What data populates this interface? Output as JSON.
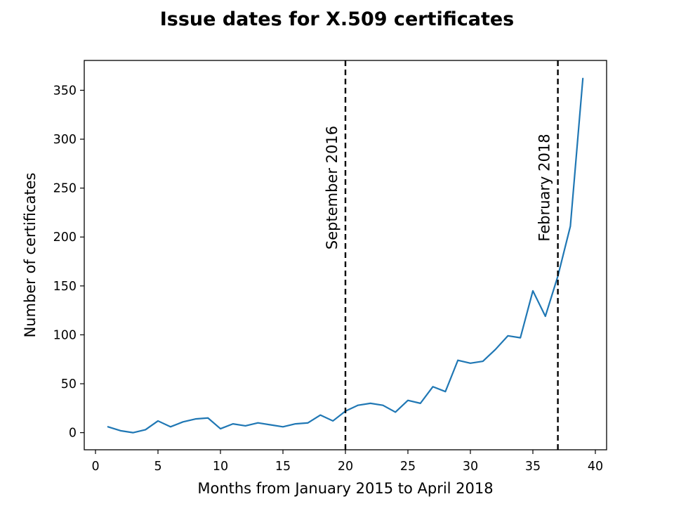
{
  "chart_data": {
    "type": "line",
    "title": "Issue dates for X.509 certificates",
    "xlabel": "Months from January 2015 to April 2018",
    "ylabel": "Number of certificates",
    "xlim": [
      -0.9,
      40.9
    ],
    "ylim": [
      -17.5,
      380.5
    ],
    "grid": false,
    "xticks": [
      0,
      5,
      10,
      15,
      20,
      25,
      30,
      35,
      40
    ],
    "yticks": [
      0,
      50,
      100,
      150,
      200,
      250,
      300,
      350
    ],
    "series": [
      {
        "color": "#1f77b4",
        "x": [
          1,
          2,
          3,
          4,
          5,
          6,
          7,
          8,
          9,
          10,
          11,
          12,
          13,
          14,
          15,
          16,
          17,
          18,
          19,
          20,
          21,
          22,
          23,
          24,
          25,
          26,
          27,
          28,
          29,
          30,
          31,
          32,
          33,
          34,
          35,
          36,
          37,
          38,
          39
        ],
        "y": [
          6,
          2,
          0,
          3,
          12,
          6,
          11,
          14,
          15,
          4,
          9,
          7,
          10,
          8,
          6,
          9,
          10,
          18,
          12,
          22,
          28,
          30,
          28,
          21,
          33,
          30,
          47,
          42,
          74,
          71,
          73,
          85,
          99,
          97,
          145,
          119,
          160,
          211,
          362
        ]
      }
    ],
    "annotations": [
      {
        "x": 20,
        "label": "September 2016",
        "style": "dashed"
      },
      {
        "x": 37,
        "label": "February 2018",
        "style": "dashed"
      }
    ]
  }
}
